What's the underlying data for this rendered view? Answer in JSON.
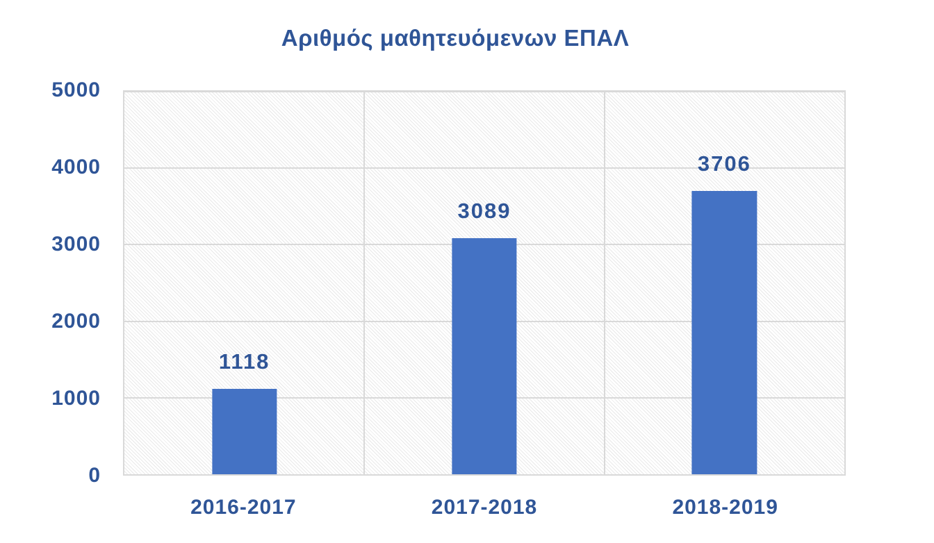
{
  "chart_data": {
    "type": "bar",
    "title": "Αριθμός μαθητευόμενων ΕΠΑΛ",
    "categories": [
      "2016-2017",
      "2017-2018",
      "2018-2019"
    ],
    "values": [
      1118,
      3089,
      3706
    ],
    "data_labels": [
      "1118",
      "3089",
      "3706"
    ],
    "xlabel": "",
    "ylabel": "",
    "ylim": [
      0,
      5000
    ],
    "ytick_step": 1000,
    "yticks": [
      "0",
      "1000",
      "2000",
      "3000",
      "4000",
      "5000"
    ],
    "legend": "none",
    "grid": {
      "horizontal_major": true,
      "vertical_category_separators": true
    },
    "plot_background": "diagonal-hatch",
    "colors": {
      "bar": "#4472C4",
      "label_text": "#2F5597",
      "gridline": "#D9D9D9",
      "hatch": "#E9E9E9",
      "background": "#FFFFFF"
    }
  }
}
